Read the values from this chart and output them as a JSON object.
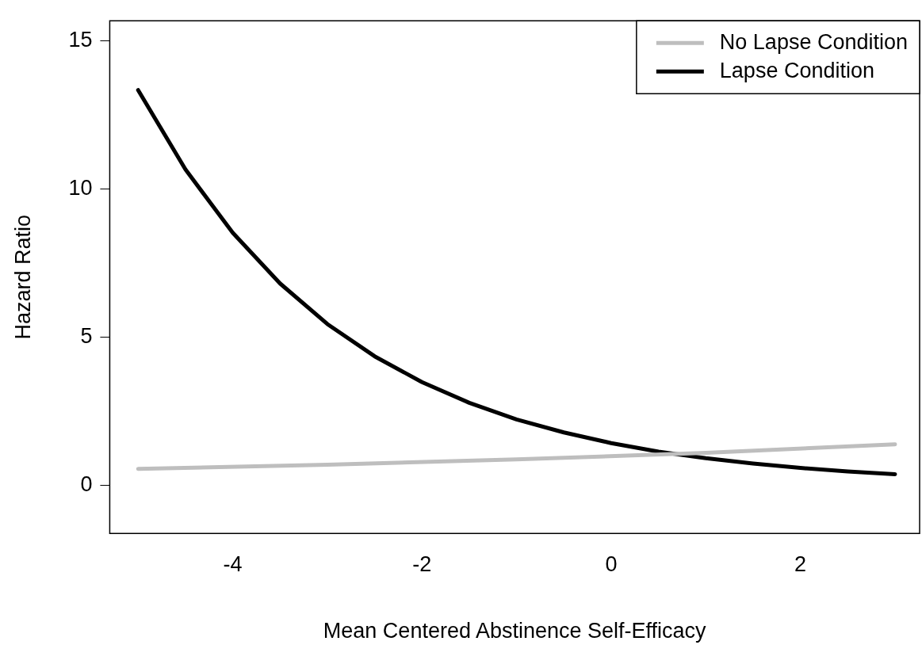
{
  "chart_data": {
    "type": "line",
    "xlabel": "Mean Centered Abstinence Self-Efficacy",
    "ylabel": "Hazard Ratio",
    "xlim": [
      -5.3,
      3.26
    ],
    "xticks": [
      -4,
      -2,
      0,
      2
    ],
    "ylim": [
      -1.63,
      15.68
    ],
    "yticks": [
      0,
      5,
      10,
      15
    ],
    "legend": "top right",
    "grid": false,
    "marker": "none",
    "line_style": "solid",
    "series": [
      {
        "name": "No Lapse Condition",
        "color": "#bebebe",
        "x": [
          -5,
          -3,
          -1,
          1,
          3
        ],
        "values": [
          0.55,
          0.69,
          0.87,
          1.09,
          1.38
        ]
      },
      {
        "name": "Lapse Condition",
        "color": "#000000",
        "x": [
          -5,
          -4.5,
          -4,
          -3.5,
          -3,
          -2.5,
          -2,
          -1.5,
          -1,
          -0.5,
          0,
          0.5,
          1,
          1.5,
          2,
          2.5,
          3
        ],
        "values": [
          13.34,
          10.66,
          8.52,
          6.81,
          5.44,
          4.35,
          3.48,
          2.78,
          2.22,
          1.78,
          1.42,
          1.13,
          0.91,
          0.73,
          0.58,
          0.46,
          0.37
        ]
      }
    ]
  }
}
